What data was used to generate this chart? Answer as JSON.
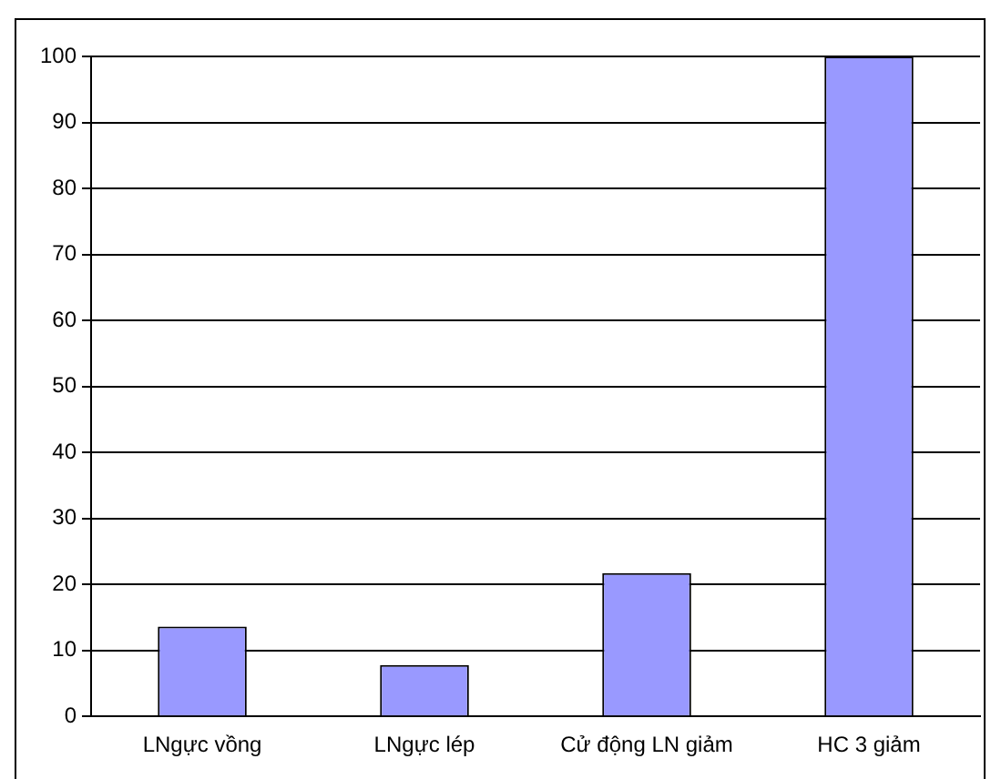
{
  "chart_data": {
    "type": "bar",
    "categories": [
      "LNgực vồng",
      "LNgực lép",
      "Cử động LN giảm",
      "HC 3 giảm"
    ],
    "values": [
      13.6,
      7.8,
      21.7,
      100
    ],
    "color": "#9999ff",
    "ylim": [
      0,
      100
    ],
    "yticks": [
      0,
      10,
      20,
      30,
      40,
      50,
      60,
      70,
      80,
      90,
      100
    ],
    "grid": "y",
    "legend": false
  }
}
